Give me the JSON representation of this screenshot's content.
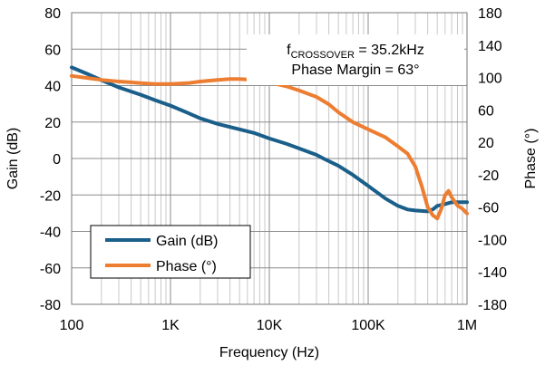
{
  "chart_data": {
    "type": "line",
    "xlabel": "Frequency (Hz)",
    "ylabel": "Gain (dB)",
    "y2label": "Phase (°)",
    "xscale": "log",
    "xlim": [
      100,
      1000000
    ],
    "ylim": [
      -80,
      80
    ],
    "y2lim": [
      -180,
      180
    ],
    "x_ticks": [
      {
        "value": 100,
        "label": "100"
      },
      {
        "value": 1000,
        "label": "1K"
      },
      {
        "value": 10000,
        "label": "10K"
      },
      {
        "value": 100000,
        "label": "100K"
      },
      {
        "value": 1000000,
        "label": "1M"
      }
    ],
    "y_ticks": [
      80,
      60,
      40,
      20,
      0,
      -20,
      -40,
      -60,
      -80
    ],
    "y2_ticks": [
      180,
      140,
      100,
      60,
      20,
      -20,
      -60,
      -100,
      -140,
      -180
    ],
    "grid": true,
    "legend_position": "bottom-left",
    "annotation": {
      "prefix": "f",
      "subscript": "CROSSOVER",
      "value": " = 35.2kHz",
      "line2": "Phase Margin = 63°"
    },
    "series": [
      {
        "name": "Gain (dB)",
        "axis": "left",
        "color": "#1a5f8a",
        "x": [
          100,
          150,
          200,
          300,
          500,
          700,
          1000,
          1500,
          2000,
          3000,
          5000,
          7000,
          10000,
          15000,
          20000,
          30000,
          35200,
          50000,
          70000,
          100000,
          150000,
          200000,
          250000,
          300000,
          400000,
          450000,
          500000,
          600000,
          700000,
          800000,
          900000,
          1000000
        ],
        "y": [
          50,
          46,
          43,
          39,
          35,
          32,
          29,
          25,
          22,
          19,
          16,
          14,
          11,
          8,
          5.5,
          2,
          0,
          -4,
          -9,
          -15,
          -22,
          -26,
          -28,
          -28.5,
          -29,
          -28,
          -26,
          -25,
          -24,
          -24,
          -24,
          -24
        ]
      },
      {
        "name": "Phase (°)",
        "axis": "right",
        "color": "#ed7d31",
        "x": [
          100,
          150,
          200,
          300,
          400,
          500,
          700,
          1000,
          1500,
          2000,
          3000,
          4000,
          5000,
          7000,
          10000,
          15000,
          20000,
          30000,
          40000,
          50000,
          70000,
          100000,
          150000,
          200000,
          250000,
          300000,
          350000,
          400000,
          450000,
          500000,
          550000,
          600000,
          650000,
          700000,
          800000,
          900000,
          1000000
        ],
        "y": [
          102,
          99,
          97,
          95,
          94,
          93,
          92,
          92,
          93,
          95,
          97,
          98,
          98,
          97,
          94,
          89,
          84,
          76,
          67,
          57,
          45,
          36,
          26,
          15,
          6,
          -10,
          -35,
          -60,
          -70,
          -74,
          -62,
          -45,
          -40,
          -48,
          -58,
          -62,
          -68
        ]
      }
    ]
  }
}
